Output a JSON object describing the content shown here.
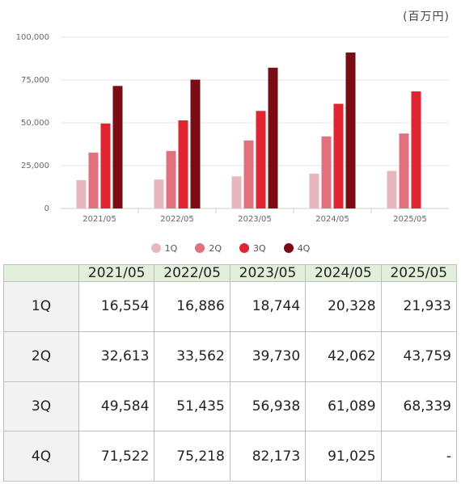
{
  "unit_label": "(百万円)",
  "chart_data": {
    "type": "bar",
    "categories": [
      "2021/05",
      "2022/05",
      "2023/05",
      "2024/05",
      "2025/05"
    ],
    "series": [
      {
        "name": "1Q",
        "color": "#e6b8be",
        "values": [
          16554,
          16886,
          18744,
          20328,
          21933
        ]
      },
      {
        "name": "2Q",
        "color": "#df727e",
        "values": [
          32613,
          33562,
          39730,
          42062,
          43759
        ]
      },
      {
        "name": "3Q",
        "color": "#e02431",
        "values": [
          49584,
          51435,
          56938,
          61089,
          68339
        ]
      },
      {
        "name": "4Q",
        "color": "#7a0c16",
        "values": [
          71522,
          75218,
          82173,
          91025,
          null
        ]
      }
    ],
    "ylim": [
      0,
      100000
    ],
    "yticks": [
      "0",
      "25,000",
      "50,000",
      "75,000",
      "100,000"
    ],
    "grid": true,
    "legend": "bottom"
  },
  "table": {
    "corner": "",
    "headers": [
      "2021/05",
      "2022/05",
      "2023/05",
      "2024/05",
      "2025/05"
    ],
    "rows": [
      {
        "label": "1Q",
        "cells": [
          "16,554",
          "16,886",
          "18,744",
          "20,328",
          "21,933"
        ]
      },
      {
        "label": "2Q",
        "cells": [
          "32,613",
          "33,562",
          "39,730",
          "42,062",
          "43,759"
        ]
      },
      {
        "label": "3Q",
        "cells": [
          "49,584",
          "51,435",
          "56,938",
          "61,089",
          "68,339"
        ]
      },
      {
        "label": "4Q",
        "cells": [
          "71,522",
          "75,218",
          "82,173",
          "91,025",
          "-"
        ]
      }
    ]
  }
}
